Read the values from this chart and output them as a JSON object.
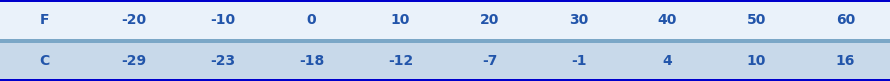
{
  "row1_label": "F",
  "row2_label": "C",
  "fahrenheit": [
    "-20",
    "-10",
    "0",
    "10",
    "20",
    "30",
    "40",
    "50",
    "60"
  ],
  "celsius": [
    "-29",
    "-23",
    "-18",
    "-12",
    "-7",
    "-1",
    "4",
    "10",
    "16"
  ],
  "outer_border_color": "#0000CC",
  "inner_border_color": "#7BA7C7",
  "row1_bg": "#EAF2FA",
  "row2_bg": "#C8D9EA",
  "text_color": "#2255AA",
  "font_size": 10,
  "fig_width": 8.9,
  "fig_height": 0.81,
  "dpi": 100
}
